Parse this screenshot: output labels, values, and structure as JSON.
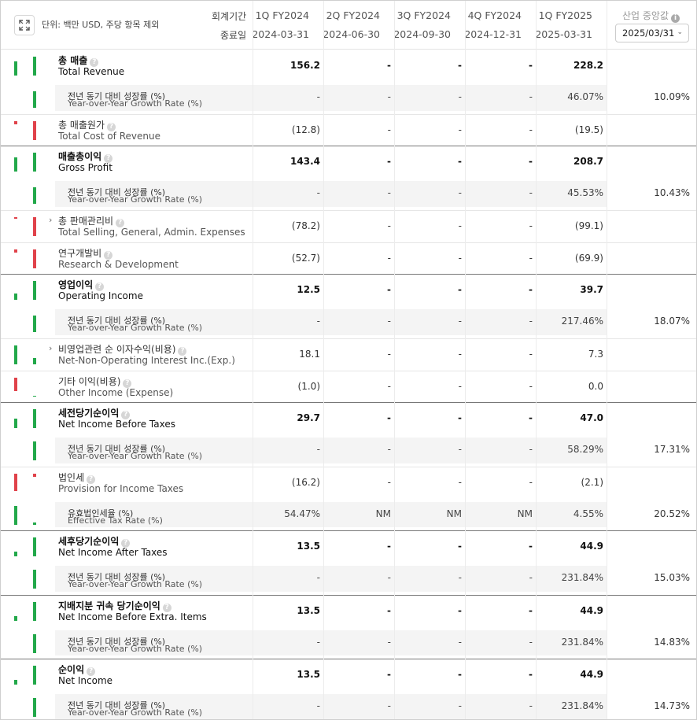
{
  "header": {
    "unit_label": "단위: 백만 USD, 주당 항목 제외",
    "period_label": "회계기간",
    "enddate_label": "종료일",
    "industry_median_label": "산업 중앙값",
    "selected_date": "2025/03/31",
    "columns": [
      {
        "period": "1Q FY2024",
        "date": "2024-03-31"
      },
      {
        "period": "2Q FY2024",
        "date": "2024-06-30"
      },
      {
        "period": "3Q FY2024",
        "date": "2024-09-30"
      },
      {
        "period": "4Q FY2024",
        "date": "2024-12-31"
      },
      {
        "period": "1Q FY2025",
        "date": "2025-03-31"
      }
    ]
  },
  "colors": {
    "positive": "#22a84a",
    "negative": "#e0424a",
    "thick_divider": "#777777"
  },
  "rows": [
    {
      "ko": "총 매출",
      "en": "Total Revenue",
      "bold": true,
      "help": true,
      "values": [
        "156.2",
        "-",
        "-",
        "-",
        "228.2"
      ],
      "industry": "",
      "bars": [
        {
          "color": "positive",
          "level": 0.45
        },
        {
          "color": "positive",
          "level": 0.6
        }
      ]
    },
    {
      "sub": true,
      "ko": "전년 동기 대비 성장률 (%)",
      "en": "Year-over-Year Growth Rate (%)",
      "values": [
        "-",
        "-",
        "-",
        "-",
        "46.07%"
      ],
      "industry": "10.09%",
      "bars": [
        {
          "color": "positive",
          "level": 0
        },
        {
          "color": "positive",
          "level": 0.52
        }
      ]
    },
    {
      "ko": "총 매출원가",
      "en": "Total Cost of Revenue",
      "help": true,
      "values": [
        "(12.8)",
        "-",
        "-",
        "-",
        "(19.5)"
      ],
      "industry": "",
      "bars": [
        {
          "color": "negative",
          "level": 0.1
        },
        {
          "color": "negative",
          "level": 0.6
        }
      ],
      "thick_after": true
    },
    {
      "ko": "매출총이익",
      "en": "Gross Profit",
      "bold": true,
      "help": true,
      "values": [
        "143.4",
        "-",
        "-",
        "-",
        "208.7"
      ],
      "industry": "",
      "bars": [
        {
          "color": "positive",
          "level": 0.45
        },
        {
          "color": "positive",
          "level": 0.6
        }
      ]
    },
    {
      "sub": true,
      "ko": "전년 동기 대비 성장률 (%)",
      "en": "Year-over-Year Growth Rate (%)",
      "values": [
        "-",
        "-",
        "-",
        "-",
        "45.53%"
      ],
      "industry": "10.43%",
      "bars": [
        {
          "color": "positive",
          "level": 0
        },
        {
          "color": "positive",
          "level": 0.52
        }
      ]
    },
    {
      "ko": "총 판매관리비",
      "en": "Total Selling, General, Admin. Expenses",
      "help": true,
      "expand": true,
      "values": [
        "(78.2)",
        "-",
        "-",
        "-",
        "(99.1)"
      ],
      "industry": "",
      "bars": [
        {
          "color": "negative",
          "level": 0.04
        },
        {
          "color": "negative",
          "level": 0.6
        }
      ]
    },
    {
      "ko": "연구개발비",
      "en": "Research & Development",
      "help": true,
      "values": [
        "(52.7)",
        "-",
        "-",
        "-",
        "(69.9)"
      ],
      "industry": "",
      "bars": [
        {
          "color": "negative",
          "level": 0.1
        },
        {
          "color": "negative",
          "level": 0.6
        }
      ],
      "thick_after": true
    },
    {
      "ko": "영업이익",
      "en": "Operating Income",
      "bold": true,
      "help": true,
      "values": [
        "12.5",
        "-",
        "-",
        "-",
        "39.7"
      ],
      "industry": "",
      "bars": [
        {
          "color": "positive",
          "level": 0.2
        },
        {
          "color": "positive",
          "level": 0.6
        }
      ]
    },
    {
      "sub": true,
      "ko": "전년 동기 대비 성장률 (%)",
      "en": "Year-over-Year Growth Rate (%)",
      "values": [
        "-",
        "-",
        "-",
        "-",
        "217.46%"
      ],
      "industry": "18.07%",
      "bars": [
        {
          "color": "positive",
          "level": 0
        },
        {
          "color": "positive",
          "level": 0.52
        }
      ]
    },
    {
      "ko": "비영업관련 순 이자수익(비용)",
      "en": "Net-Non-Operating Interest Inc.(Exp.)",
      "help": true,
      "expand": true,
      "values": [
        "18.1",
        "-",
        "-",
        "-",
        "7.3"
      ],
      "industry": "",
      "bars": [
        {
          "color": "positive",
          "level": 0.6
        },
        {
          "color": "positive",
          "level": 0.2
        }
      ]
    },
    {
      "ko": "기타 이익(비용)",
      "en": "Other Income (Expense)",
      "help": true,
      "values": [
        "(1.0)",
        "-",
        "-",
        "-",
        "0.0"
      ],
      "industry": "",
      "bars": [
        {
          "color": "negative",
          "level": 0.42
        },
        {
          "color": "positive",
          "level": 0.02
        }
      ],
      "thick_after": true
    },
    {
      "ko": "세전당기순이익",
      "en": "Net Income Before Taxes",
      "bold": true,
      "help": true,
      "values": [
        "29.7",
        "-",
        "-",
        "-",
        "47.0"
      ],
      "industry": "",
      "bars": [
        {
          "color": "positive",
          "level": 0.3
        },
        {
          "color": "positive",
          "level": 0.6
        }
      ]
    },
    {
      "sub": true,
      "ko": "전년 동기 대비 성장률 (%)",
      "en": "Year-over-Year Growth Rate (%)",
      "values": [
        "-",
        "-",
        "-",
        "-",
        "58.29%"
      ],
      "industry": "17.31%",
      "bars": [
        {
          "color": "positive",
          "level": 0
        },
        {
          "color": "positive",
          "level": 0.6
        }
      ]
    },
    {
      "ko": "법인세",
      "en": "Provision for Income Taxes",
      "help": true,
      "values": [
        "(16.2)",
        "-",
        "-",
        "-",
        "(2.1)"
      ],
      "industry": "",
      "bars": [
        {
          "color": "negative",
          "level": 0.55
        },
        {
          "color": "negative",
          "level": 0.1
        }
      ]
    },
    {
      "sub": true,
      "ko": "유효법인세율 (%)",
      "en": "Effective Tax Rate (%)",
      "values": [
        "54.47%",
        "NM",
        "NM",
        "NM",
        "4.55%"
      ],
      "industry": "20.52%",
      "bars": [
        {
          "color": "positive",
          "level": 0.6
        },
        {
          "color": "positive",
          "level": 0.08
        }
      ],
      "thick_after": true
    },
    {
      "ko": "세후당기순이익",
      "en": "Net Income After Taxes",
      "bold": true,
      "help": true,
      "values": [
        "13.5",
        "-",
        "-",
        "-",
        "44.9"
      ],
      "industry": "",
      "bars": [
        {
          "color": "positive",
          "level": 0.16
        },
        {
          "color": "positive",
          "level": 0.6
        }
      ]
    },
    {
      "sub": true,
      "ko": "전년 동기 대비 성장률 (%)",
      "en": "Year-over-Year Growth Rate (%)",
      "values": [
        "-",
        "-",
        "-",
        "-",
        "231.84%"
      ],
      "industry": "15.03%",
      "bars": [
        {
          "color": "positive",
          "level": 0
        },
        {
          "color": "positive",
          "level": 0.6
        }
      ],
      "thick_after": true
    },
    {
      "ko": "지배지분 귀속 당기순이익",
      "en": "Net Income Before Extra. Items",
      "bold": true,
      "help": true,
      "values": [
        "13.5",
        "-",
        "-",
        "-",
        "44.9"
      ],
      "industry": "",
      "bars": [
        {
          "color": "positive",
          "level": 0.16
        },
        {
          "color": "positive",
          "level": 0.6
        }
      ]
    },
    {
      "sub": true,
      "ko": "전년 동기 대비 성장률 (%)",
      "en": "Year-over-Year Growth Rate (%)",
      "values": [
        "-",
        "-",
        "-",
        "-",
        "231.84%"
      ],
      "industry": "14.83%",
      "bars": [
        {
          "color": "positive",
          "level": 0
        },
        {
          "color": "positive",
          "level": 0.6
        }
      ],
      "thick_after": true
    },
    {
      "ko": "순이익",
      "en": "Net Income",
      "bold": true,
      "help": true,
      "values": [
        "13.5",
        "-",
        "-",
        "-",
        "44.9"
      ],
      "industry": "",
      "bars": [
        {
          "color": "positive",
          "level": 0.16
        },
        {
          "color": "positive",
          "level": 0.6
        }
      ]
    },
    {
      "sub": true,
      "ko": "전년 동기 대비 성장률 (%)",
      "en": "Year-over-Year Growth Rate (%)",
      "values": [
        "-",
        "-",
        "-",
        "-",
        "231.84%"
      ],
      "industry": "14.73%",
      "bars": [
        {
          "color": "positive",
          "level": 0
        },
        {
          "color": "positive",
          "level": 0.6
        }
      ]
    }
  ]
}
